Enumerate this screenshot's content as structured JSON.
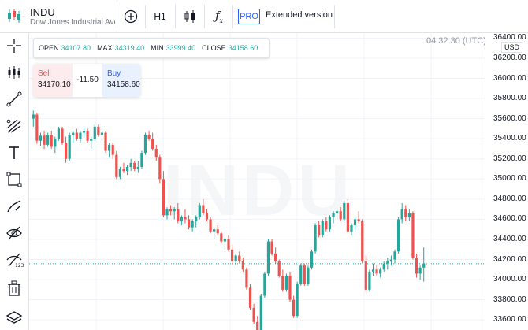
{
  "header": {
    "symbol": "INDU",
    "name": "Dow Jones Industrial Ave",
    "interval": "H1",
    "pro_label": "PRO",
    "extended_label": "Extended version"
  },
  "watermark": "INDU",
  "clock": "04:32:30 (UTC)",
  "ohlc": {
    "open_label": "OPEN",
    "open": "34107.80",
    "max_label": "MAX",
    "max": "34319.40",
    "min_label": "MIN",
    "min": "33999.40",
    "close_label": "CLOSE",
    "close": "34158.60"
  },
  "trade": {
    "sell_label": "Sell",
    "sell_price": "34170.10",
    "spread": "-11.50",
    "buy_label": "Buy",
    "buy_price": "34158.60"
  },
  "axis": {
    "currency": "USD",
    "ticks": [
      "36400.00",
      "36200.00",
      "36000.00",
      "35800.00",
      "35600.00",
      "35400.00",
      "35200.00",
      "35000.00",
      "34800.00",
      "34600.00",
      "34400.00",
      "34200.00",
      "34000.00",
      "33800.00",
      "33600.00"
    ]
  },
  "colors": {
    "up": "#26a69a",
    "down": "#ef5350",
    "grid": "#f0f3fa",
    "accent": "#2962ff"
  },
  "tools": [
    "crosshair-icon",
    "indicators-icon",
    "trend-line-icon",
    "fib-icon",
    "text-icon",
    "rectangle-icon",
    "brush-icon",
    "eye-icon",
    "ruler-icon",
    "delete-icon",
    "layers-icon"
  ],
  "chart_data": {
    "type": "candlestick",
    "price_range": [
      33500,
      36450
    ],
    "candles": [
      [
        35600,
        35680,
        35520,
        35640
      ],
      [
        35640,
        35660,
        35350,
        35380
      ],
      [
        35380,
        35460,
        35330,
        35430
      ],
      [
        35430,
        35480,
        35300,
        35340
      ],
      [
        35340,
        35460,
        35320,
        35440
      ],
      [
        35440,
        35480,
        35300,
        35320
      ],
      [
        35320,
        35420,
        35260,
        35400
      ],
      [
        35400,
        35520,
        35380,
        35500
      ],
      [
        35500,
        35520,
        35340,
        35360
      ],
      [
        35360,
        35420,
        35160,
        35200
      ],
      [
        35200,
        35460,
        35180,
        35440
      ],
      [
        35440,
        35480,
        35360,
        35460
      ],
      [
        35460,
        35500,
        35380,
        35400
      ],
      [
        35400,
        35480,
        35360,
        35460
      ],
      [
        35460,
        35520,
        35420,
        35480
      ],
      [
        35480,
        35500,
        35360,
        35380
      ],
      [
        35380,
        35420,
        35300,
        35400
      ],
      [
        35400,
        35540,
        35380,
        35520
      ],
      [
        35520,
        35540,
        35420,
        35440
      ],
      [
        35440,
        35480,
        35380,
        35460
      ],
      [
        35460,
        35480,
        35260,
        35280
      ],
      [
        35280,
        35360,
        35220,
        35340
      ],
      [
        35340,
        35360,
        35200,
        35240
      ],
      [
        35240,
        35280,
        35000,
        35020
      ],
      [
        35020,
        35120,
        35000,
        35100
      ],
      [
        35100,
        35160,
        35060,
        35080
      ],
      [
        35080,
        35140,
        35040,
        35120
      ],
      [
        35120,
        35200,
        35080,
        35160
      ],
      [
        35160,
        35180,
        35080,
        35100
      ],
      [
        35100,
        35180,
        35060,
        35120
      ],
      [
        35120,
        35280,
        35100,
        35260
      ],
      [
        35260,
        35460,
        35240,
        35440
      ],
      [
        35440,
        35480,
        35380,
        35400
      ],
      [
        35400,
        35460,
        35280,
        35300
      ],
      [
        35300,
        35340,
        35180,
        35220
      ],
      [
        35220,
        35240,
        34960,
        35000
      ],
      [
        35000,
        35080,
        34620,
        34640
      ],
      [
        34640,
        34720,
        34600,
        34700
      ],
      [
        34700,
        34740,
        34640,
        34680
      ],
      [
        34680,
        34720,
        34600,
        34700
      ],
      [
        34700,
        34760,
        34560,
        34580
      ],
      [
        34580,
        34640,
        34540,
        34620
      ],
      [
        34620,
        34700,
        34560,
        34600
      ],
      [
        34600,
        34640,
        34500,
        34520
      ],
      [
        34520,
        34600,
        34480,
        34580
      ],
      [
        34580,
        34640,
        34520,
        34620
      ],
      [
        34620,
        34760,
        34600,
        34740
      ],
      [
        34740,
        34800,
        34640,
        34660
      ],
      [
        34660,
        34700,
        34580,
        34600
      ],
      [
        34600,
        34620,
        34460,
        34480
      ],
      [
        34480,
        34520,
        34400,
        34500
      ],
      [
        34500,
        34540,
        34440,
        34460
      ],
      [
        34460,
        34480,
        34360,
        34380
      ],
      [
        34380,
        34420,
        34300,
        34400
      ],
      [
        34400,
        34440,
        34280,
        34300
      ],
      [
        34300,
        34340,
        34160,
        34180
      ],
      [
        34180,
        34260,
        34140,
        34240
      ],
      [
        34240,
        34280,
        34160,
        34180
      ],
      [
        34180,
        34220,
        34080,
        34100
      ],
      [
        34100,
        34120,
        33900,
        33920
      ],
      [
        33920,
        33960,
        33700,
        33720
      ],
      [
        33720,
        33760,
        33560,
        33580
      ],
      [
        33580,
        33640,
        33460,
        33500
      ],
      [
        33500,
        33860,
        33480,
        33840
      ],
      [
        33840,
        34080,
        33820,
        34060
      ],
      [
        34060,
        34400,
        34040,
        34380
      ],
      [
        34380,
        34400,
        34240,
        34260
      ],
      [
        34260,
        34320,
        34160,
        34180
      ],
      [
        34180,
        34200,
        34020,
        34040
      ],
      [
        34040,
        34100,
        33880,
        33900
      ],
      [
        33900,
        34060,
        33880,
        34040
      ],
      [
        34040,
        34080,
        33780,
        33800
      ],
      [
        33800,
        33840,
        33620,
        33640
      ],
      [
        33640,
        33980,
        33620,
        33960
      ],
      [
        33960,
        34160,
        33940,
        34140
      ],
      [
        34140,
        34160,
        33940,
        33960
      ],
      [
        33960,
        34140,
        33940,
        34120
      ],
      [
        34120,
        34300,
        34100,
        34280
      ],
      [
        34280,
        34560,
        34260,
        34540
      ],
      [
        34540,
        34580,
        34420,
        34440
      ],
      [
        34440,
        34600,
        34420,
        34580
      ],
      [
        34580,
        34620,
        34480,
        34500
      ],
      [
        34500,
        34640,
        34480,
        34620
      ],
      [
        34620,
        34680,
        34560,
        34660
      ],
      [
        34660,
        34700,
        34600,
        34680
      ],
      [
        34680,
        34720,
        34580,
        34600
      ],
      [
        34600,
        34780,
        34580,
        34760
      ],
      [
        34760,
        34800,
        34460,
        34480
      ],
      [
        34480,
        34560,
        34440,
        34540
      ],
      [
        34540,
        34620,
        34500,
        34600
      ],
      [
        34600,
        34680,
        34560,
        34580
      ],
      [
        34580,
        34600,
        34160,
        34180
      ],
      [
        34180,
        34240,
        33880,
        33900
      ],
      [
        33900,
        34100,
        33880,
        34080
      ],
      [
        34080,
        34160,
        34040,
        34100
      ],
      [
        34100,
        34140,
        34040,
        34060
      ],
      [
        34060,
        34120,
        34020,
        34100
      ],
      [
        34100,
        34180,
        34080,
        34160
      ],
      [
        34160,
        34220,
        34100,
        34180
      ],
      [
        34180,
        34240,
        34140,
        34200
      ],
      [
        34200,
        34300,
        34160,
        34280
      ],
      [
        34280,
        34620,
        34260,
        34600
      ],
      [
        34600,
        34760,
        34560,
        34700
      ],
      [
        34700,
        34740,
        34580,
        34620
      ],
      [
        34620,
        34700,
        34580,
        34660
      ],
      [
        34660,
        34680,
        34200,
        34220
      ],
      [
        34220,
        34260,
        34020,
        34060
      ],
      [
        34060,
        34140,
        34000,
        34120
      ],
      [
        34120,
        34320,
        33980,
        34160
      ]
    ],
    "last_price": 34158.6
  }
}
